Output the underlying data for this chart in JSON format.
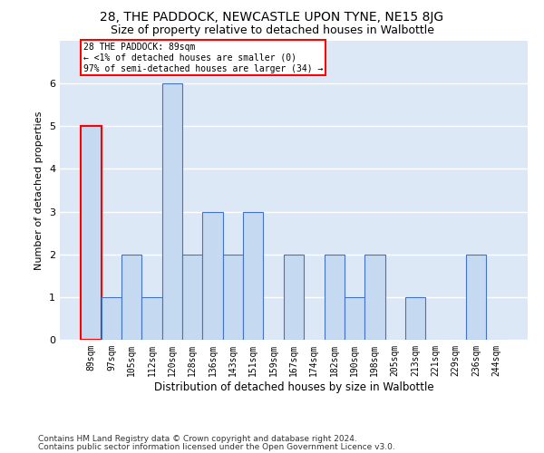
{
  "title1": "28, THE PADDOCK, NEWCASTLE UPON TYNE, NE15 8JG",
  "title2": "Size of property relative to detached houses in Walbottle",
  "xlabel": "Distribution of detached houses by size in Walbottle",
  "ylabel": "Number of detached properties",
  "categories": [
    "89sqm",
    "97sqm",
    "105sqm",
    "112sqm",
    "120sqm",
    "128sqm",
    "136sqm",
    "143sqm",
    "151sqm",
    "159sqm",
    "167sqm",
    "174sqm",
    "182sqm",
    "190sqm",
    "198sqm",
    "205sqm",
    "213sqm",
    "221sqm",
    "229sqm",
    "236sqm",
    "244sqm"
  ],
  "values": [
    5,
    1,
    2,
    1,
    6,
    2,
    3,
    2,
    3,
    0,
    2,
    0,
    2,
    1,
    2,
    0,
    1,
    0,
    0,
    2,
    0
  ],
  "bar_color": "#c5d9f1",
  "bar_edge_color": "#4472c4",
  "highlight_index": 0,
  "highlight_color_edge": "#ff0000",
  "annotation_text": "28 THE PADDOCK: 89sqm\n← <1% of detached houses are smaller (0)\n97% of semi-detached houses are larger (34) →",
  "annotation_box_color": "#ffffff",
  "annotation_box_edge": "#ff0000",
  "footer1": "Contains HM Land Registry data © Crown copyright and database right 2024.",
  "footer2": "Contains public sector information licensed under the Open Government Licence v3.0.",
  "ylim": [
    0,
    7
  ],
  "yticks": [
    0,
    1,
    2,
    3,
    4,
    5,
    6
  ],
  "bg_color": "#dde8f7",
  "grid_color": "#ffffff",
  "title1_fontsize": 10,
  "title2_fontsize": 9,
  "xlabel_fontsize": 8.5,
  "ylabel_fontsize": 8,
  "tick_fontsize": 7,
  "footer_fontsize": 6.5
}
